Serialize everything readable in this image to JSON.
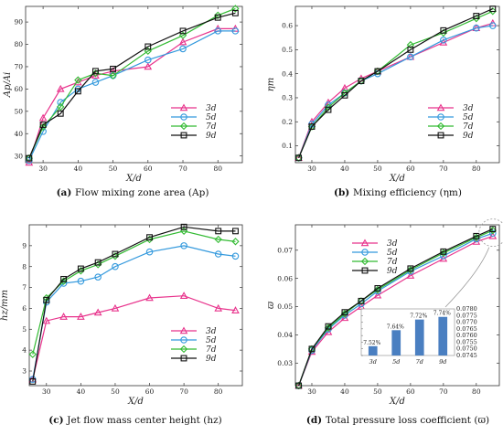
{
  "chart_data": [
    {
      "type": "line",
      "panel": "a",
      "caption_letter": "(a)",
      "caption_text": "Flow mixing zone area (Ap)",
      "xlabel": "X/d",
      "ylabel": "Ap/Ai",
      "xlim": [
        25,
        87
      ],
      "ylim": [
        27,
        97
      ],
      "xticks": [
        30,
        40,
        50,
        60,
        70,
        80
      ],
      "yticks": [
        30,
        40,
        50,
        60,
        70,
        80,
        90
      ],
      "legend_position": "center-right",
      "x": [
        26,
        30,
        35,
        40,
        45,
        50,
        60,
        70,
        80,
        85
      ],
      "series": [
        {
          "name": "3d",
          "color": "#e8338c",
          "marker": "triangle",
          "values": [
            27,
            47,
            60,
            63,
            66,
            68,
            70,
            81,
            87,
            87
          ]
        },
        {
          "name": "5d",
          "color": "#3399dd",
          "marker": "circle",
          "values": [
            28,
            41,
            54,
            60,
            63,
            66,
            73,
            78,
            86,
            86
          ]
        },
        {
          "name": "7d",
          "color": "#33bb33",
          "marker": "diamond",
          "values": [
            29,
            43,
            52,
            64,
            67,
            66,
            77,
            84,
            93,
            96
          ]
        },
        {
          "name": "9d",
          "color": "#111111",
          "marker": "square",
          "values": [
            29,
            44,
            49,
            59,
            68,
            69,
            79,
            86,
            92,
            94
          ]
        }
      ]
    },
    {
      "type": "line",
      "panel": "b",
      "caption_letter": "(b)",
      "caption_text": "Mixing efficiency (ηm)",
      "xlabel": "X/d",
      "ylabel": "ηm",
      "xlim": [
        25,
        87
      ],
      "ylim": [
        0.03,
        0.68
      ],
      "xticks": [
        30,
        40,
        50,
        60,
        70,
        80
      ],
      "yticks": [
        0.1,
        0.2,
        0.3,
        0.4,
        0.5,
        0.6
      ],
      "legend_position": "center-right",
      "x": [
        26,
        30,
        35,
        40,
        45,
        50,
        60,
        70,
        80,
        85
      ],
      "series": [
        {
          "name": "3d",
          "color": "#e8338c",
          "marker": "triangle",
          "values": [
            0.05,
            0.2,
            0.28,
            0.34,
            0.38,
            0.41,
            0.47,
            0.53,
            0.59,
            0.61
          ]
        },
        {
          "name": "5d",
          "color": "#3399dd",
          "marker": "circle",
          "values": [
            0.05,
            0.19,
            0.27,
            0.32,
            0.37,
            0.4,
            0.47,
            0.54,
            0.59,
            0.6
          ]
        },
        {
          "name": "7d",
          "color": "#33bb33",
          "marker": "diamond",
          "values": [
            0.05,
            0.18,
            0.26,
            0.32,
            0.37,
            0.41,
            0.52,
            0.57,
            0.63,
            0.66
          ]
        },
        {
          "name": "9d",
          "color": "#111111",
          "marker": "square",
          "values": [
            0.05,
            0.18,
            0.25,
            0.31,
            0.37,
            0.41,
            0.5,
            0.58,
            0.64,
            0.67
          ]
        }
      ]
    },
    {
      "type": "line",
      "panel": "c",
      "caption_letter": "(c)",
      "caption_text": "Jet flow mass center height (hz)",
      "xlabel": "X/d",
      "ylabel": "hz/mm",
      "xlim": [
        25,
        87
      ],
      "ylim": [
        2.3,
        10.0
      ],
      "xticks": [
        30,
        40,
        50,
        60,
        70,
        80
      ],
      "yticks": [
        3,
        4,
        5,
        6,
        7,
        8,
        9
      ],
      "legend_position": "center-right",
      "x": [
        26,
        30,
        35,
        40,
        45,
        50,
        60,
        70,
        80,
        85
      ],
      "series": [
        {
          "name": "3d",
          "color": "#e8338c",
          "marker": "triangle",
          "values": [
            2.6,
            5.4,
            5.6,
            5.6,
            5.8,
            6.0,
            6.5,
            6.6,
            6.0,
            5.9
          ]
        },
        {
          "name": "5d",
          "color": "#3399dd",
          "marker": "circle",
          "values": [
            2.6,
            6.3,
            7.2,
            7.3,
            7.5,
            8.0,
            8.7,
            9.0,
            8.6,
            8.5
          ]
        },
        {
          "name": "7d",
          "color": "#33bb33",
          "marker": "diamond",
          "values": [
            3.8,
            6.5,
            7.3,
            7.8,
            8.1,
            8.5,
            9.3,
            9.7,
            9.3,
            9.2
          ]
        },
        {
          "name": "9d",
          "color": "#111111",
          "marker": "square",
          "values": [
            2.5,
            6.4,
            7.4,
            7.9,
            8.2,
            8.6,
            9.4,
            9.9,
            9.7,
            9.7
          ]
        }
      ]
    },
    {
      "type": "line",
      "panel": "d",
      "caption_letter": "(d)",
      "caption_text": "Total pressure loss coefficient (ϖ)",
      "xlabel": "X/d",
      "ylabel": "ϖ",
      "xlim": [
        25,
        87
      ],
      "ylim": [
        0.022,
        0.079
      ],
      "xticks": [
        30,
        40,
        50,
        60,
        70,
        80
      ],
      "yticks": [
        0.03,
        0.04,
        0.05,
        0.06,
        0.07
      ],
      "legend_position": "top-left",
      "x": [
        26,
        30,
        35,
        40,
        45,
        50,
        60,
        70,
        80,
        85
      ],
      "series": [
        {
          "name": "3d",
          "color": "#e8338c",
          "marker": "triangle",
          "values": [
            0.022,
            0.034,
            0.041,
            0.046,
            0.05,
            0.054,
            0.061,
            0.067,
            0.073,
            0.075
          ]
        },
        {
          "name": "5d",
          "color": "#3399dd",
          "marker": "circle",
          "values": [
            0.022,
            0.0345,
            0.042,
            0.047,
            0.051,
            0.0555,
            0.0625,
            0.068,
            0.074,
            0.076
          ]
        },
        {
          "name": "7d",
          "color": "#33bb33",
          "marker": "diamond",
          "values": [
            0.022,
            0.035,
            0.0425,
            0.0475,
            0.052,
            0.056,
            0.063,
            0.069,
            0.0745,
            0.077
          ]
        },
        {
          "name": "9d",
          "color": "#111111",
          "marker": "square",
          "values": [
            0.022,
            0.035,
            0.043,
            0.048,
            0.052,
            0.0565,
            0.0635,
            0.0695,
            0.075,
            0.0775
          ]
        }
      ],
      "inset": {
        "type": "bar",
        "categories": [
          "3d",
          "5d",
          "7d",
          "9d"
        ],
        "values": [
          0.0752,
          0.0764,
          0.0772,
          0.0774
        ],
        "labels": [
          "7.52%",
          "7.64%",
          "7.72%",
          "7.74%"
        ],
        "ylim": [
          0.0745,
          0.078
        ],
        "yticks": [
          0.0745,
          0.075,
          0.0755,
          0.076,
          0.0765,
          0.077,
          0.0775,
          0.078
        ],
        "ytick_labels": [
          "0.0745",
          "0.0750",
          "0.0755",
          "0.0760",
          "0.0765",
          "0.0770",
          "0.0775",
          "0.0780"
        ],
        "color": "#4a7fc1"
      }
    }
  ]
}
